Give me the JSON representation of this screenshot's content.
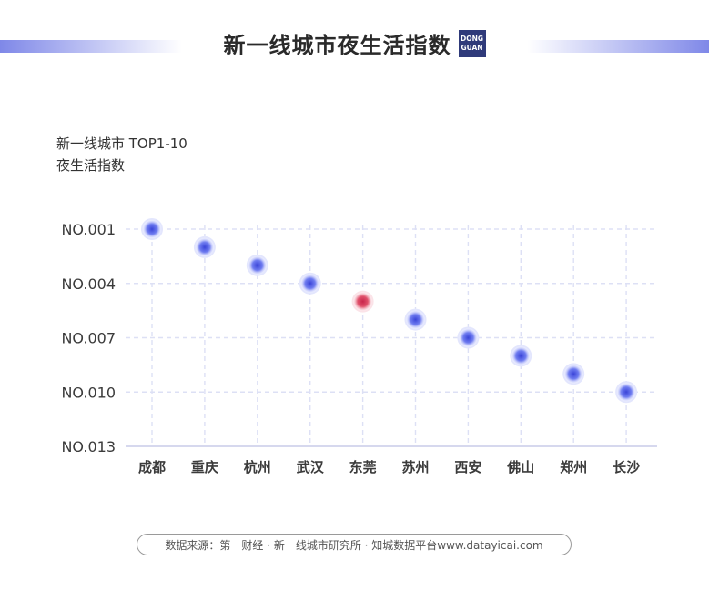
{
  "header": {
    "title": "新一线城市夜生活指数",
    "logo_line1": "DONG",
    "logo_line2": "GUAN"
  },
  "subtitle": {
    "line1": "新一线城市 TOP1-10",
    "line2": "夜生活指数"
  },
  "colors": {
    "point": "#6f7cf0",
    "highlight": "#e0506a",
    "grid": "#dde0f5",
    "accent": "#7f88e8"
  },
  "chart_data": {
    "type": "scatter",
    "categories": [
      "成都",
      "重庆",
      "杭州",
      "武汉",
      "东莞",
      "苏州",
      "西安",
      "佛山",
      "郑州",
      "长沙"
    ],
    "values": [
      1,
      2,
      3,
      4,
      5,
      6,
      7,
      8,
      9,
      10
    ],
    "highlight_category": "东莞",
    "y_ticks": [
      "NO.001",
      "NO.004",
      "NO.007",
      "NO.010",
      "NO.013"
    ],
    "y_tick_values": [
      1,
      4,
      7,
      10,
      13
    ],
    "ylim": [
      1,
      13
    ],
    "y_inverted": true,
    "grid": true
  },
  "footer": {
    "source": "数据来源：第一财经 · 新一线城市研究所 · 知城数据平台www.datayicai.com"
  }
}
